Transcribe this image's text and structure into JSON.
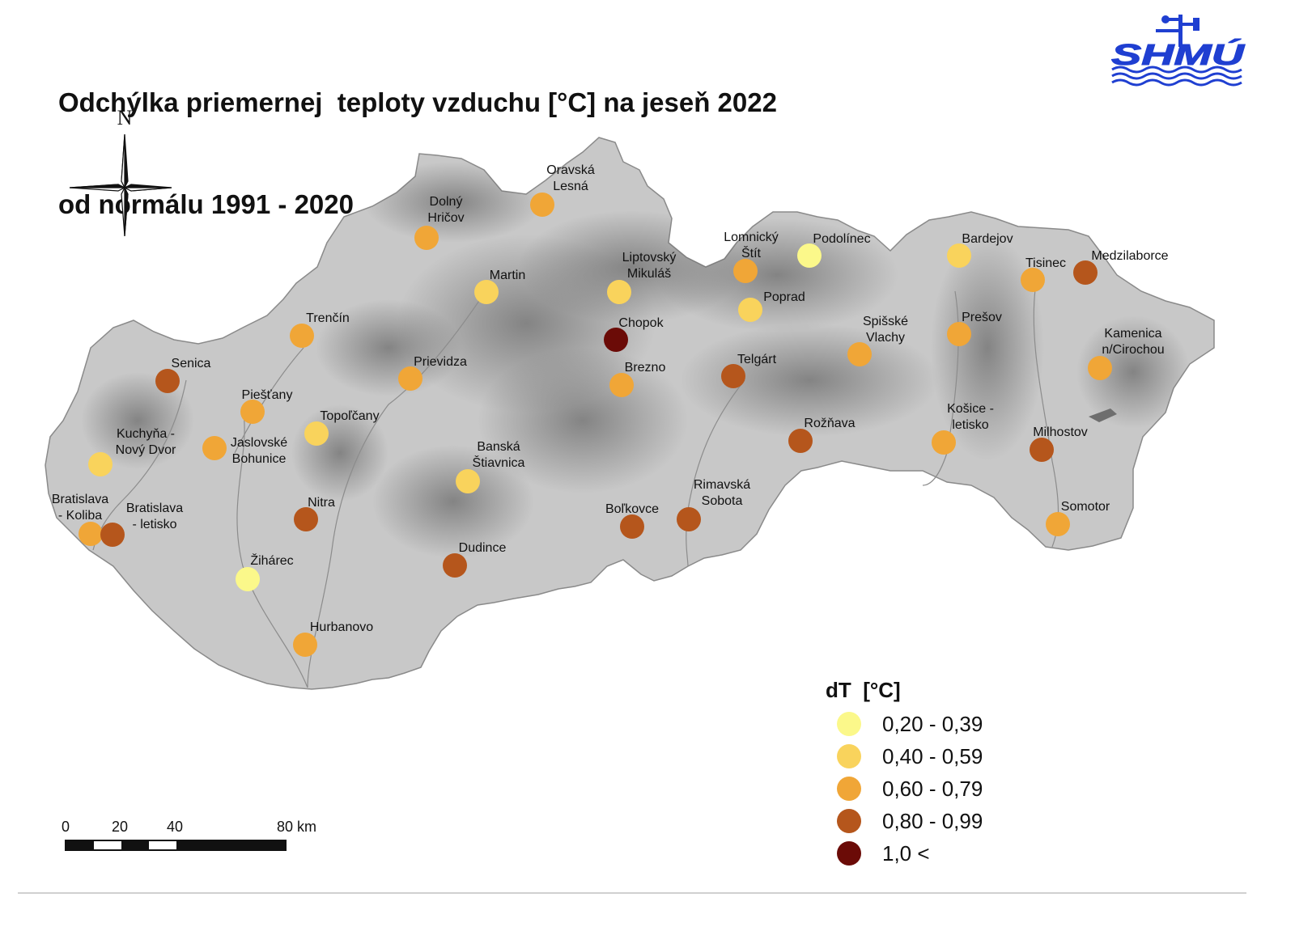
{
  "title": {
    "line1": "Odchýlka priemernej  teploty vzduchu [°C] na jeseň 2022",
    "line2": "od normálu 1991 - 2020"
  },
  "logo": {
    "text": "SHMÚ",
    "color": "#1f3fd1"
  },
  "north_label": "N",
  "legend": {
    "title": "dT  [°C]",
    "classes": [
      {
        "label": "0,20 - 0,39",
        "color": "#fbf88a"
      },
      {
        "label": "0,40 - 0,59",
        "color": "#f9d35c"
      },
      {
        "label": "0,60 - 0,79",
        "color": "#f0a637"
      },
      {
        "label": "0,80 - 0,99",
        "color": "#b5561c"
      },
      {
        "label": "1,0 <",
        "color": "#6b0b07"
      }
    ]
  },
  "scale": {
    "ticks": [
      "0",
      "20",
      "40",
      "80 km"
    ]
  },
  "stations": [
    {
      "name": "Oravská\nLesná",
      "class": 2
    },
    {
      "name": "Dolný\nHričov",
      "class": 2
    },
    {
      "name": "Martin",
      "class": 1
    },
    {
      "name": "Liptovský\nMikuláš",
      "class": 1
    },
    {
      "name": "Lomnický\nŠtít",
      "class": 2
    },
    {
      "name": "Podolínec",
      "class": 0
    },
    {
      "name": "Bardejov",
      "class": 1
    },
    {
      "name": "Tisinec",
      "class": 2
    },
    {
      "name": "Medzilaborce",
      "class": 3
    },
    {
      "name": "Poprad",
      "class": 1
    },
    {
      "name": "Chopok",
      "class": 4
    },
    {
      "name": "Trenčín",
      "class": 2
    },
    {
      "name": "Spišské\nVlachy",
      "class": 2
    },
    {
      "name": "Prešov",
      "class": 2
    },
    {
      "name": "Kamenica\nn/Cirochou",
      "class": 2
    },
    {
      "name": "Senica",
      "class": 3
    },
    {
      "name": "Prievidza",
      "class": 2
    },
    {
      "name": "Brezno",
      "class": 2
    },
    {
      "name": "Telgárt",
      "class": 3
    },
    {
      "name": "Piešťany",
      "class": 2
    },
    {
      "name": "Topoľčany",
      "class": 1
    },
    {
      "name": "Rožňava",
      "class": 3
    },
    {
      "name": "Košice -\nletisko",
      "class": 2
    },
    {
      "name": "Milhostov",
      "class": 3
    },
    {
      "name": "Kuchyňa -\nNový Dvor",
      "class": 1
    },
    {
      "name": "Jaslovské\nBohunice",
      "class": 2
    },
    {
      "name": "Banská\nŠtiavnica",
      "class": 1
    },
    {
      "name": "Bratislava\n- Koliba",
      "class": 2
    },
    {
      "name": "Bratislava\n- letisko",
      "class": 3
    },
    {
      "name": "Nitra",
      "class": 3
    },
    {
      "name": "Boľkovce",
      "class": 3
    },
    {
      "name": "Rimavská\nSobota",
      "class": 3
    },
    {
      "name": "Somotor",
      "class": 2
    },
    {
      "name": "Dudince",
      "class": 3
    },
    {
      "name": "Žihárec",
      "class": 0
    },
    {
      "name": "Hurbanovo",
      "class": 2
    }
  ]
}
